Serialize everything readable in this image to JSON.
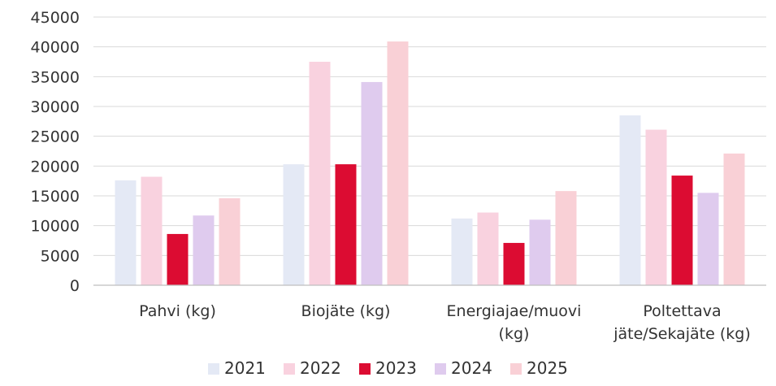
{
  "chart_data": {
    "type": "bar",
    "title": "",
    "xlabel": "",
    "ylabel": "",
    "ylim": [
      0,
      45000
    ],
    "yticks": [
      0,
      5000,
      10000,
      15000,
      20000,
      25000,
      30000,
      35000,
      40000,
      45000
    ],
    "ytick_labels": [
      "0",
      "5000",
      "10000",
      "15000",
      "20000",
      "25000",
      "30000",
      "35000",
      "40000",
      "45000"
    ],
    "grid": true,
    "legend_position": "bottom",
    "categories": [
      [
        "Pahvi (kg)"
      ],
      [
        "Biojäte (kg)"
      ],
      [
        "Energiajae/muovi",
        "(kg)"
      ],
      [
        "Poltettava",
        "jäte/Sekajäte (kg)"
      ]
    ],
    "series": [
      {
        "name": "2021",
        "color": "#e4e9f5",
        "values": [
          17600,
          20300,
          11200,
          28500
        ]
      },
      {
        "name": "2022",
        "color": "#f9d2df",
        "values": [
          18200,
          37500,
          12200,
          26100
        ]
      },
      {
        "name": "2023",
        "color": "#dc0c32",
        "values": [
          8600,
          20300,
          7100,
          18400
        ]
      },
      {
        "name": "2024",
        "color": "#dfcbee",
        "values": [
          11700,
          34100,
          11000,
          15500
        ]
      },
      {
        "name": "2025",
        "color": "#f9d0d6",
        "values": [
          14600,
          40900,
          15800,
          22100
        ]
      }
    ]
  }
}
